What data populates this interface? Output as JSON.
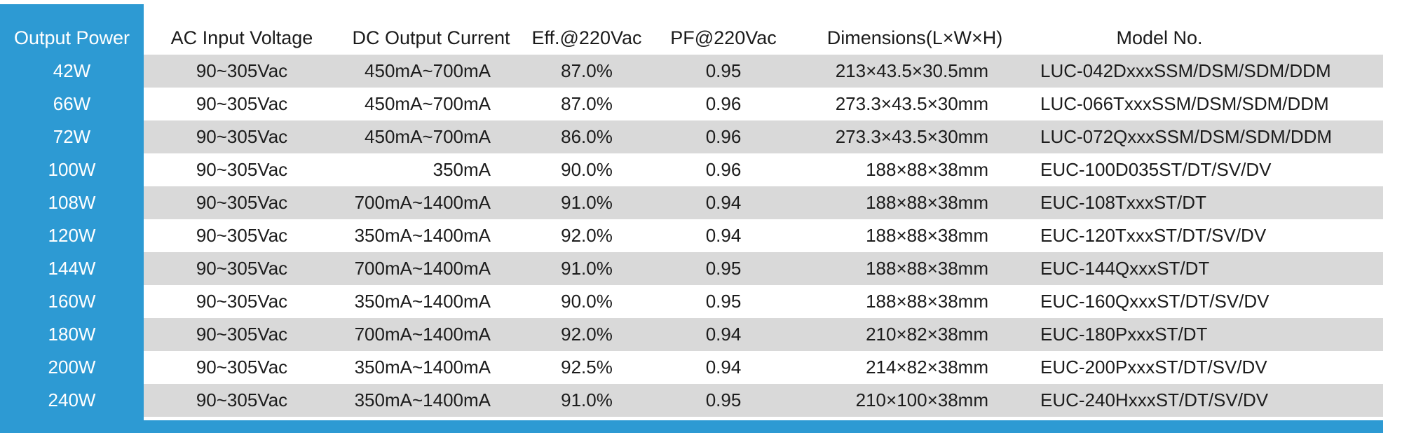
{
  "colors": {
    "accent": "#2d9ad3",
    "stripe": "#d9d9d9"
  },
  "headers": {
    "power": "Output Power",
    "ac": "AC Input Voltage",
    "dc": "DC Output Current",
    "eff": "Eff.@220Vac",
    "pf": "PF@220Vac",
    "dim": "Dimensions(L×W×H)",
    "model": "Model No."
  },
  "rows": [
    {
      "power": "42W",
      "ac": "90~305Vac",
      "dc": "450mA~700mA",
      "eff": "87.0%",
      "pf": "0.95",
      "dim": "213×43.5×30.5mm",
      "model": "LUC-042DxxxSSM/DSM/SDM/DDM"
    },
    {
      "power": "66W",
      "ac": "90~305Vac",
      "dc": "450mA~700mA",
      "eff": "87.0%",
      "pf": "0.96",
      "dim": "273.3×43.5×30mm",
      "model": "LUC-066TxxxSSM/DSM/SDM/DDM"
    },
    {
      "power": "72W",
      "ac": "90~305Vac",
      "dc": "450mA~700mA",
      "eff": "86.0%",
      "pf": "0.96",
      "dim": "273.3×43.5×30mm",
      "model": "LUC-072QxxxSSM/DSM/SDM/DDM"
    },
    {
      "power": "100W",
      "ac": "90~305Vac",
      "dc": "350mA",
      "eff": "90.0%",
      "pf": "0.96",
      "dim": "188×88×38mm",
      "model": "EUC-100D035ST/DT/SV/DV"
    },
    {
      "power": "108W",
      "ac": "90~305Vac",
      "dc": "700mA~1400mA",
      "eff": "91.0%",
      "pf": "0.94",
      "dim": "188×88×38mm",
      "model": "EUC-108TxxxST/DT"
    },
    {
      "power": "120W",
      "ac": "90~305Vac",
      "dc": "350mA~1400mA",
      "eff": "92.0%",
      "pf": "0.94",
      "dim": "188×88×38mm",
      "model": "EUC-120TxxxST/DT/SV/DV"
    },
    {
      "power": "144W",
      "ac": "90~305Vac",
      "dc": "700mA~1400mA",
      "eff": "91.0%",
      "pf": "0.95",
      "dim": "188×88×38mm",
      "model": "EUC-144QxxxST/DT"
    },
    {
      "power": "160W",
      "ac": "90~305Vac",
      "dc": "350mA~1400mA",
      "eff": "90.0%",
      "pf": "0.95",
      "dim": "188×88×38mm",
      "model": "EUC-160QxxxST/DT/SV/DV"
    },
    {
      "power": "180W",
      "ac": "90~305Vac",
      "dc": "700mA~1400mA",
      "eff": "92.0%",
      "pf": "0.94",
      "dim": "210×82×38mm",
      "model": "EUC-180PxxxST/DT"
    },
    {
      "power": "200W",
      "ac": "90~305Vac",
      "dc": "350mA~1400mA",
      "eff": "92.5%",
      "pf": "0.94",
      "dim": "214×82×38mm",
      "model": "EUC-200PxxxST/DT/SV/DV"
    },
    {
      "power": "240W",
      "ac": "90~305Vac",
      "dc": "350mA~1400mA",
      "eff": "91.0%",
      "pf": "0.95",
      "dim": "210×100×38mm",
      "model": "EUC-240HxxxST/DT/SV/DV"
    }
  ]
}
